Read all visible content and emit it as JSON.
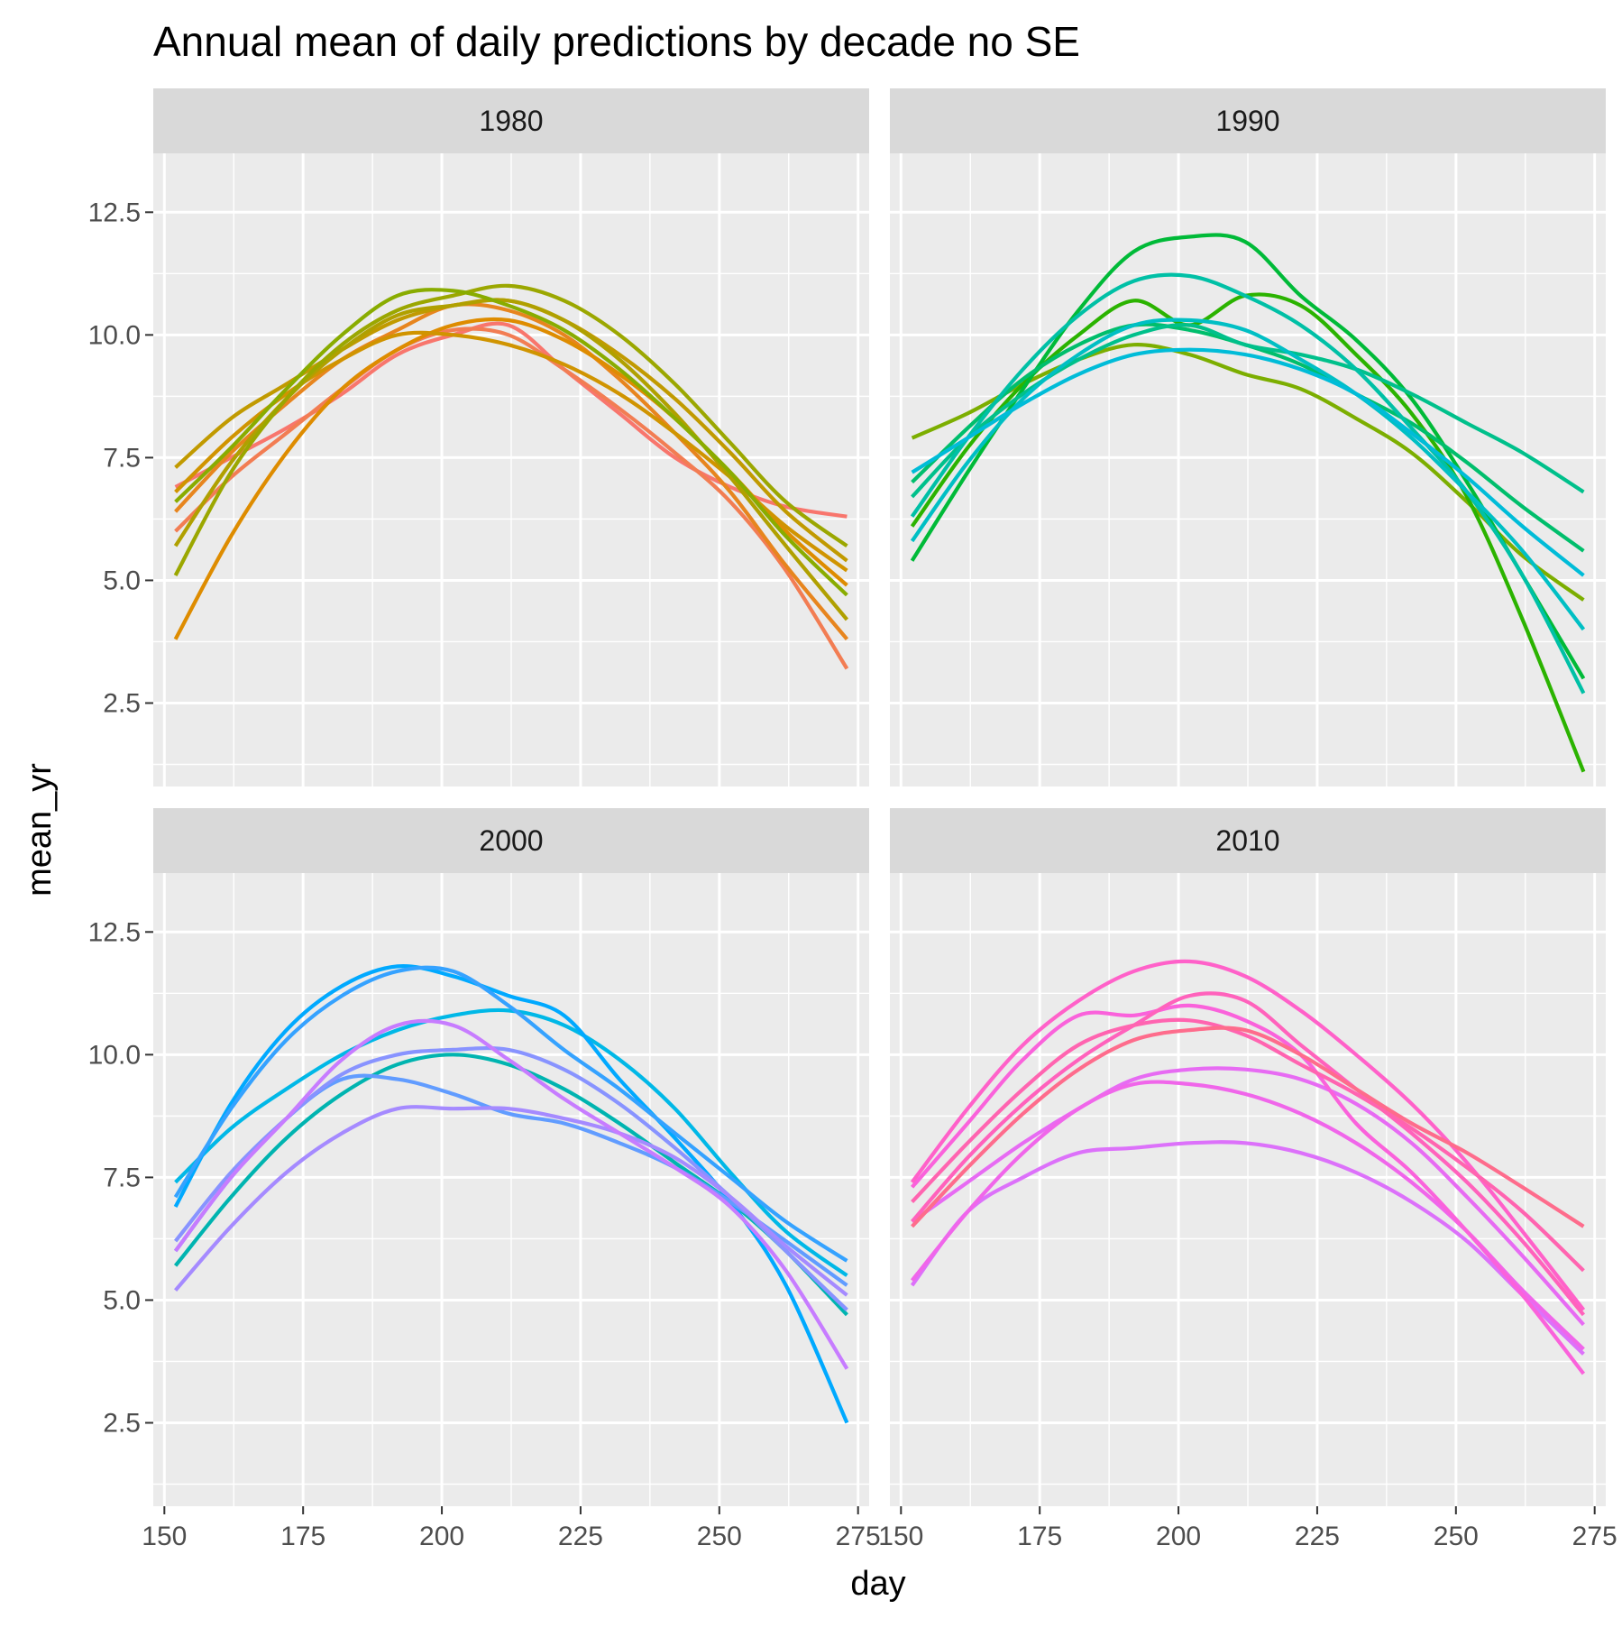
{
  "chart_data": {
    "type": "line",
    "title": "Annual mean of daily predictions by decade no SE",
    "xlabel": "day",
    "ylabel": "mean_yr",
    "xlim": [
      148,
      277
    ],
    "ylim": [
      0.8,
      13.7
    ],
    "x_ticks": [
      150,
      175,
      200,
      225,
      250,
      275
    ],
    "y_ticks": [
      2.5,
      5.0,
      7.5,
      10.0,
      12.5
    ],
    "x_tick_labels": [
      "150",
      "175",
      "200",
      "225",
      "250",
      "275"
    ],
    "y_tick_labels": [
      "2.5",
      "5.0",
      "7.5",
      "10.0",
      "12.5"
    ],
    "grid": true,
    "legend": "none",
    "x": [
      152,
      162,
      172,
      182,
      192,
      202,
      212,
      222,
      232,
      242,
      252,
      262,
      273
    ],
    "panels": [
      {
        "facet": "1980",
        "series": [
          {
            "color": "#F8766D",
            "values": [
              6.9,
              7.5,
              8.1,
              8.8,
              9.6,
              10.0,
              10.2,
              9.3,
              8.4,
              7.5,
              6.9,
              6.5,
              6.3
            ]
          },
          {
            "color": "#F27D53",
            "values": [
              6.0,
              7.1,
              8.0,
              8.9,
              9.7,
              10.1,
              10.0,
              9.3,
              8.5,
              7.6,
              6.6,
              5.2,
              3.2
            ]
          },
          {
            "color": "#E7851E",
            "values": [
              6.4,
              7.6,
              8.6,
              9.5,
              10.1,
              10.6,
              10.5,
              10.0,
              9.1,
              8.0,
              6.8,
              5.3,
              3.8
            ]
          },
          {
            "color": "#DE8C00",
            "values": [
              3.8,
              5.9,
              7.6,
              8.9,
              9.7,
              10.2,
              10.3,
              9.9,
              9.2,
              8.3,
              7.2,
              6.0,
              4.9
            ]
          },
          {
            "color": "#D09400",
            "values": [
              6.8,
              7.9,
              8.8,
              9.5,
              10.0,
              10.0,
              9.8,
              9.4,
              8.8,
              8.0,
              7.1,
              6.1,
              5.2
            ]
          },
          {
            "color": "#C19A00",
            "values": [
              7.3,
              8.3,
              9.0,
              9.7,
              10.3,
              10.6,
              10.7,
              10.3,
              9.6,
              8.7,
              7.6,
              6.4,
              5.4
            ]
          },
          {
            "color": "#B0A000",
            "values": [
              5.7,
              7.4,
              8.7,
              9.7,
              10.4,
              10.6,
              10.7,
              10.3,
              9.5,
              8.4,
              7.1,
              5.7,
              4.2
            ]
          },
          {
            "color": "#9BA700",
            "values": [
              5.1,
              7.2,
              8.7,
              9.8,
              10.5,
              10.8,
              11.0,
              10.7,
              10.0,
              9.0,
              7.8,
              6.6,
              5.7
            ]
          },
          {
            "color": "#89AC00",
            "values": [
              6.6,
              7.7,
              8.9,
              10.0,
              10.8,
              10.9,
              10.6,
              10.1,
              9.3,
              8.3,
              7.2,
              5.9,
              4.7
            ]
          }
        ]
      },
      {
        "facet": "1990",
        "series": [
          {
            "color": "#7CAE00",
            "values": [
              7.9,
              8.4,
              9.0,
              9.5,
              9.8,
              9.6,
              9.2,
              8.9,
              8.3,
              7.6,
              6.6,
              5.5,
              4.6
            ]
          },
          {
            "color": "#2BB300",
            "values": [
              6.1,
              7.7,
              9.0,
              10.0,
              10.7,
              10.2,
              10.8,
              10.6,
              9.6,
              8.4,
              6.7,
              4.2,
              1.1
            ]
          },
          {
            "color": "#00BA38",
            "values": [
              5.4,
              7.2,
              8.9,
              10.5,
              11.7,
              12.0,
              11.9,
              10.8,
              9.9,
              8.7,
              7.0,
              5.1,
              3.0
            ]
          },
          {
            "color": "#00BE6C",
            "values": [
              7.0,
              8.1,
              9.1,
              9.8,
              10.2,
              10.1,
              9.8,
              9.4,
              8.8,
              8.2,
              7.4,
              6.5,
              5.6
            ]
          },
          {
            "color": "#00C08B",
            "values": [
              6.7,
              7.9,
              8.8,
              9.5,
              10.0,
              10.2,
              9.8,
              9.6,
              9.3,
              8.8,
              8.2,
              7.6,
              6.8
            ]
          },
          {
            "color": "#00C0A6",
            "values": [
              6.3,
              7.9,
              9.3,
              10.4,
              11.1,
              11.2,
              10.8,
              10.2,
              9.3,
              8.1,
              6.8,
              5.1,
              2.7
            ]
          },
          {
            "color": "#00BFC4",
            "values": [
              5.8,
              7.4,
              8.7,
              9.6,
              10.2,
              10.3,
              10.1,
              9.5,
              8.8,
              7.9,
              6.8,
              5.6,
              4.0
            ]
          },
          {
            "color": "#00BCD8",
            "values": [
              7.2,
              7.9,
              8.6,
              9.2,
              9.6,
              9.7,
              9.6,
              9.3,
              8.8,
              8.0,
              7.1,
              6.1,
              5.1
            ]
          }
        ]
      },
      {
        "facet": "2000",
        "series": [
          {
            "color": "#00B4B0",
            "values": [
              5.7,
              7.1,
              8.3,
              9.2,
              9.8,
              10.0,
              9.8,
              9.3,
              8.6,
              7.8,
              7.0,
              6.0,
              4.7
            ]
          },
          {
            "color": "#00B8E7",
            "values": [
              7.4,
              8.5,
              9.3,
              10.0,
              10.5,
              10.8,
              10.9,
              10.6,
              9.9,
              8.9,
              7.6,
              6.4,
              5.5
            ]
          },
          {
            "color": "#00A9FF",
            "values": [
              6.9,
              9.0,
              10.5,
              11.4,
              11.8,
              11.6,
              11.2,
              10.8,
              9.5,
              8.3,
              7.0,
              5.3,
              2.5
            ]
          },
          {
            "color": "#35A2FF",
            "values": [
              7.1,
              8.9,
              10.3,
              11.2,
              11.7,
              11.7,
              11.0,
              10.1,
              9.3,
              8.4,
              7.5,
              6.6,
              5.8
            ]
          },
          {
            "color": "#619CFF",
            "values": [
              6.0,
              7.5,
              8.7,
              9.5,
              9.5,
              9.2,
              8.8,
              8.6,
              8.2,
              7.7,
              7.0,
              6.2,
              5.3
            ]
          },
          {
            "color": "#8893FF",
            "values": [
              6.2,
              7.6,
              8.7,
              9.6,
              10.0,
              10.1,
              10.1,
              9.7,
              9.0,
              8.1,
              7.1,
              6.0,
              4.8
            ]
          },
          {
            "color": "#A58AFF",
            "values": [
              5.2,
              6.5,
              7.6,
              8.4,
              8.9,
              8.9,
              8.9,
              8.7,
              8.4,
              7.9,
              7.1,
              6.1,
              5.1
            ]
          },
          {
            "color": "#C77CFF",
            "values": [
              6.0,
              7.5,
              8.7,
              9.9,
              10.6,
              10.6,
              9.9,
              9.1,
              8.4,
              7.7,
              6.9,
              5.6,
              3.6
            ]
          }
        ]
      },
      {
        "facet": "2010",
        "series": [
          {
            "color": "#DC71FA",
            "values": [
              5.3,
              6.8,
              7.5,
              8.0,
              8.1,
              8.2,
              8.2,
              8.0,
              7.6,
              7.0,
              6.2,
              5.1,
              3.9
            ]
          },
          {
            "color": "#E76BF3",
            "values": [
              6.6,
              7.4,
              8.2,
              8.9,
              9.5,
              9.7,
              9.7,
              9.5,
              9.0,
              8.2,
              7.1,
              5.9,
              4.5
            ]
          },
          {
            "color": "#F066EA",
            "values": [
              5.4,
              6.8,
              8.0,
              8.9,
              9.4,
              9.4,
              9.2,
              8.8,
              8.2,
              7.4,
              6.4,
              5.2,
              4.0
            ]
          },
          {
            "color": "#FA62DB",
            "values": [
              7.3,
              8.6,
              9.9,
              10.8,
              10.8,
              11.0,
              10.7,
              10.0,
              8.6,
              7.6,
              6.4,
              5.1,
              3.5
            ]
          },
          {
            "color": "#FF61C9",
            "values": [
              7.4,
              8.9,
              10.2,
              11.1,
              11.7,
              11.9,
              11.6,
              10.9,
              10.0,
              9.0,
              7.8,
              6.4,
              4.8
            ]
          },
          {
            "color": "#FF62BC",
            "values": [
              6.6,
              7.9,
              9.0,
              9.9,
              10.6,
              11.2,
              11.1,
              10.2,
              9.3,
              8.4,
              7.4,
              6.2,
              4.7
            ]
          },
          {
            "color": "#FF64B0",
            "values": [
              7.0,
              8.2,
              9.3,
              10.2,
              10.6,
              10.7,
              10.4,
              9.8,
              9.2,
              8.5,
              7.7,
              6.8,
              5.6
            ]
          },
          {
            "color": "#FE6C8C",
            "values": [
              6.5,
              7.7,
              8.8,
              9.7,
              10.3,
              10.5,
              10.5,
              10.0,
              9.3,
              8.6,
              8.0,
              7.3,
              6.5
            ]
          }
        ]
      }
    ]
  }
}
